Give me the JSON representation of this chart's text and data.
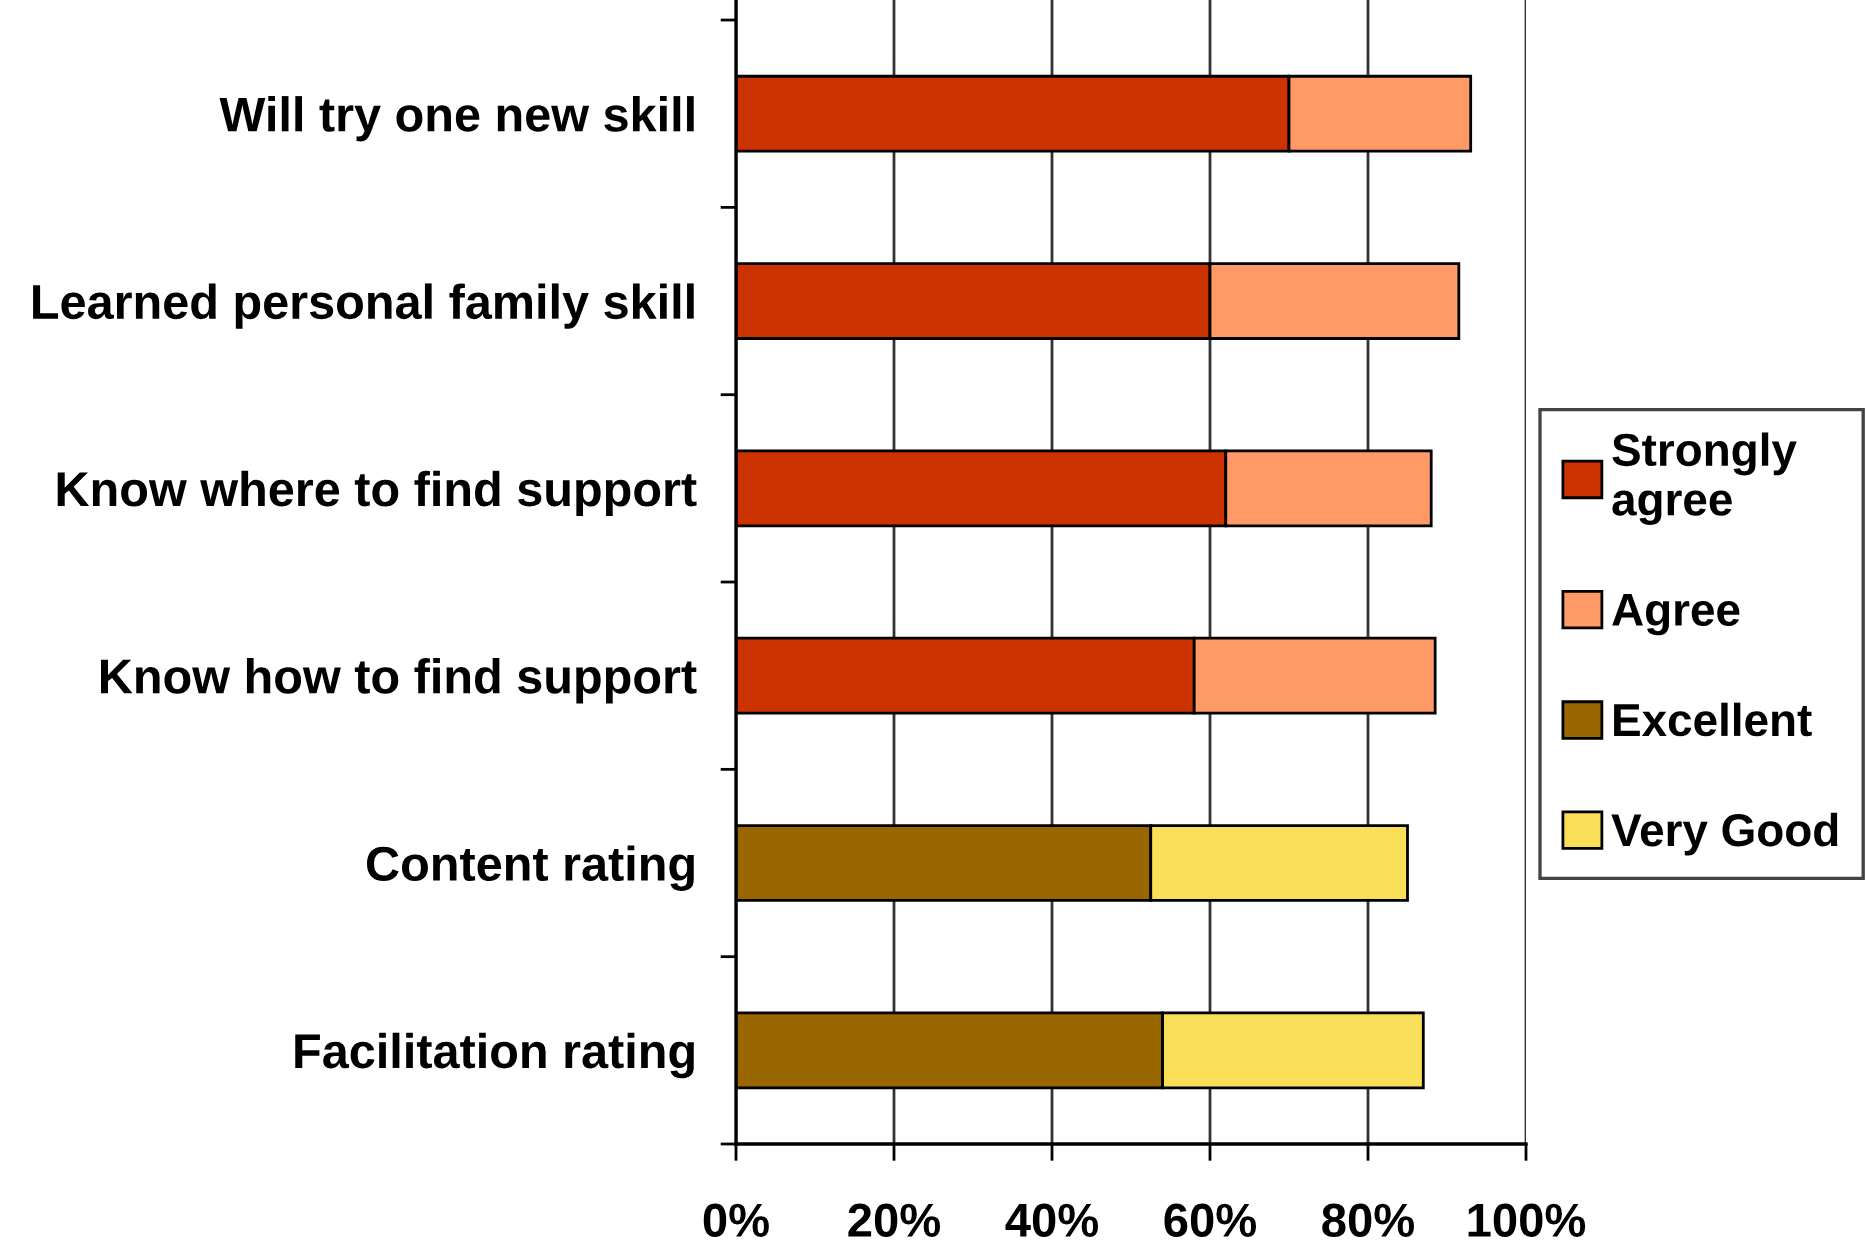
{
  "chart_data": {
    "type": "bar",
    "orientation": "horizontal",
    "stacked": true,
    "categories": [
      "Will try one new skill",
      "Learned personal family skill",
      "Know where to find support",
      "Know how to find support",
      "Content rating",
      "Facilitation rating"
    ],
    "series": [
      {
        "name": "Strongly agree",
        "color": "#cc3300",
        "values": [
          70,
          60,
          62,
          58,
          null,
          null
        ]
      },
      {
        "name": "Agree",
        "color": "#ff9966",
        "values": [
          23,
          31.5,
          26,
          30.5,
          null,
          null
        ]
      },
      {
        "name": "Excellent",
        "color": "#996600",
        "values": [
          null,
          null,
          null,
          null,
          52.5,
          54
        ]
      },
      {
        "name": "Very Good",
        "color": "#f9df57",
        "values": [
          null,
          null,
          null,
          null,
          32.5,
          33
        ]
      }
    ],
    "xlim": [
      0,
      100
    ],
    "xticks": [
      {
        "value": 0,
        "label": "0%"
      },
      {
        "value": 20,
        "label": "20%"
      },
      {
        "value": 40,
        "label": "40%"
      },
      {
        "value": 60,
        "label": "60%"
      },
      {
        "value": 80,
        "label": "80%"
      },
      {
        "value": 100,
        "label": "100%"
      }
    ],
    "grid": "x",
    "legend": "right"
  }
}
